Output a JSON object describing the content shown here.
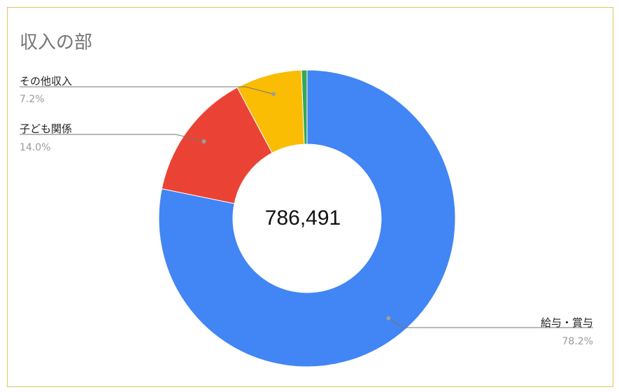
{
  "chart_data": {
    "type": "pie",
    "donut": true,
    "title": "収入の部",
    "center_label": "786,491",
    "slices": [
      {
        "name": "給与・賞与",
        "value": 78.2,
        "pct_label": "78.2%",
        "color": "#4285f4"
      },
      {
        "name": "子ども関係",
        "value": 14.0,
        "pct_label": "14.0%",
        "color": "#ea4335"
      },
      {
        "name": "その他収入",
        "value": 7.2,
        "pct_label": "7.2%",
        "color": "#fbbc04"
      },
      {
        "name": "",
        "value": 0.6,
        "pct_label": "",
        "color": "#34a853"
      }
    ],
    "legend": "none",
    "label_placement": "outside-with-leader-lines"
  },
  "colors": {
    "border": "#e5c25a",
    "title": "#757575",
    "leader_line": "#757575"
  }
}
